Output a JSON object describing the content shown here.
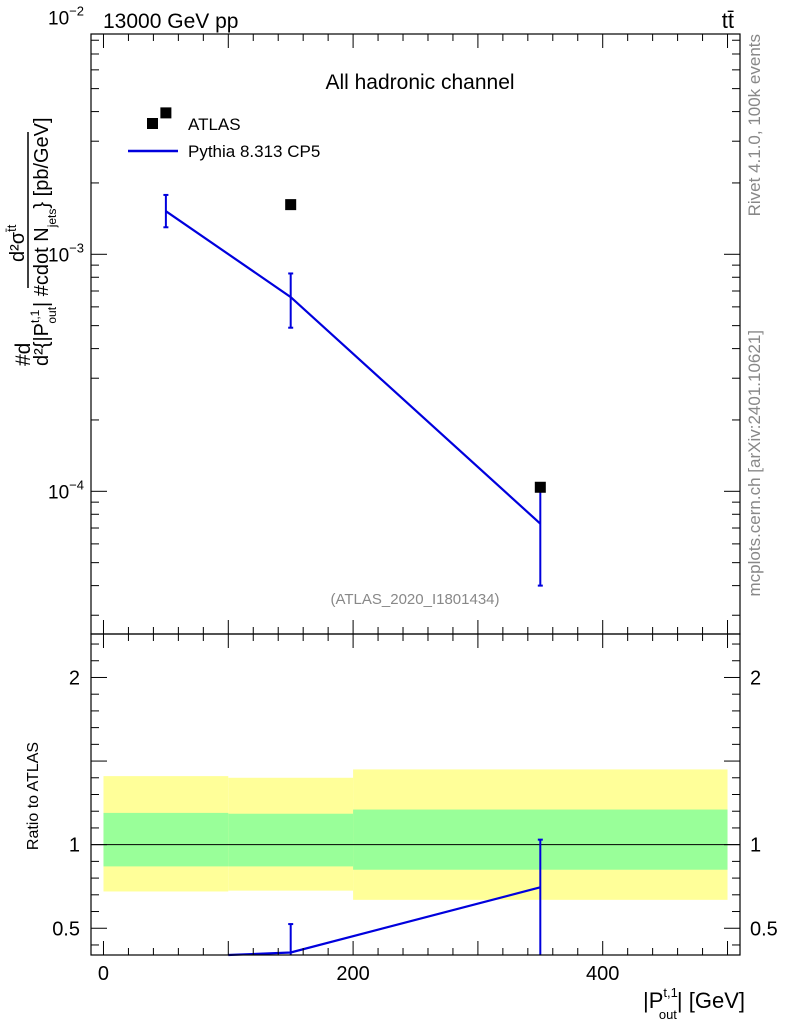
{
  "header": {
    "left": "13000 GeV pp",
    "right": "tt̄"
  },
  "side_texts": {
    "rivet": "Rivet 4.1.0,  100k events",
    "mcplots": "mcplots.cern.ch [arXiv:2401.10621]"
  },
  "chart_data": [
    {
      "type": "scatter",
      "panel": "main",
      "title": "All hadronic channel",
      "watermark": "(ATLAS_2020_I1801434)",
      "ylabel": "#d d²σ^{tt̄} / d²{|P_out^{t,1}| #cdot N_jets} [pb/GeV]",
      "ylabel_parts": {
        "top": "#d",
        "numerator": "d²σ",
        "numerator_sup": "t̄t",
        "denominator": "d²{|P",
        "denominator_sup": "t,1",
        "denominator_sub": "out",
        "denominator_rest": "| #cdot N",
        "denominator_sub2": "jets",
        "unit": "} [pb/GeV]"
      },
      "yscale": "log",
      "ylim": [
        2.5e-05,
        0.0085
      ],
      "xlim": [
        -10,
        510
      ],
      "yticks": [
        {
          "value": 0.0001,
          "label": "10",
          "exp": "−4"
        },
        {
          "value": 0.001,
          "label": "10",
          "exp": "−3"
        },
        {
          "value": 0.01,
          "label": "10",
          "exp": "−2"
        }
      ],
      "legend_position": "top-left",
      "series": [
        {
          "name": "ATLAS",
          "style": "markers",
          "color": "#000000",
          "x": [
            50,
            150,
            350
          ],
          "y": [
            0.00395,
            0.00162,
            0.000104
          ]
        },
        {
          "name": "Pythia 8.313 CP5",
          "style": "line",
          "color": "#0000dd",
          "x": [
            50,
            150,
            350
          ],
          "y": [
            0.00152,
            0.00066,
            7.3e-05
          ],
          "err_low": [
            0.0013,
            0.00049,
            4e-05
          ],
          "err_high": [
            0.00178,
            0.00083,
            0.000104
          ]
        }
      ]
    },
    {
      "type": "line",
      "panel": "ratio",
      "ylabel": "Ratio to ATLAS",
      "xlabel_parts": {
        "main": "|P",
        "sup": "t,1",
        "sub": "out",
        "rest": "| [GeV]"
      },
      "xlim": [
        -10,
        510
      ],
      "ylim": [
        0.34,
        2.26
      ],
      "xticks": [
        0,
        200,
        400
      ],
      "yticks": [
        0.5,
        1,
        2
      ],
      "bands": [
        {
          "x0": 0,
          "x1": 100,
          "yellow": [
            0.72,
            1.41
          ],
          "green": [
            0.87,
            1.19
          ]
        },
        {
          "x0": 100,
          "x1": 200,
          "yellow": [
            0.725,
            1.4
          ],
          "green": [
            0.87,
            1.185
          ]
        },
        {
          "x0": 200,
          "x1": 500,
          "yellow": [
            0.67,
            1.45
          ],
          "green": [
            0.85,
            1.21
          ]
        }
      ],
      "band_colors": {
        "yellow": "#ffff99",
        "green": "#99ff99"
      },
      "reference": 1,
      "series": [
        {
          "name": "Pythia 8.313 CP5",
          "color": "#0000dd",
          "x": [
            100,
            150,
            350
          ],
          "y": [
            0.34,
            0.355,
            0.745
          ],
          "err_low": [
            null,
            0.34,
            0.34
          ],
          "err_high": [
            null,
            0.525,
            1.03
          ]
        }
      ]
    }
  ]
}
